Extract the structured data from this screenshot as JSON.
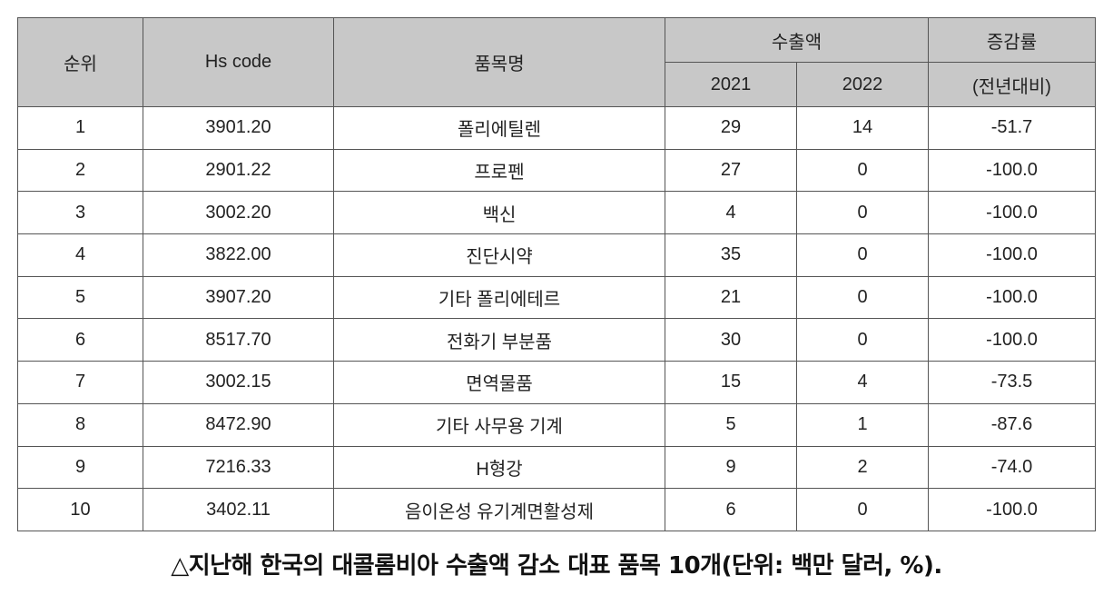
{
  "header": {
    "rank": "순위",
    "hs_code": "Hs code",
    "item_name": "품목명",
    "export_amount": "수출액",
    "year_2021": "2021",
    "year_2022": "2022",
    "change_rate_line1": "증감률",
    "change_rate_line2": "(전년대비)"
  },
  "rows": [
    {
      "rank": "1",
      "hs": "3901.20",
      "name": "폴리에틸렌",
      "v2021": "29",
      "v2022": "14",
      "change": "-51.7"
    },
    {
      "rank": "2",
      "hs": "2901.22",
      "name": "프로펜",
      "v2021": "27",
      "v2022": "0",
      "change": "-100.0"
    },
    {
      "rank": "3",
      "hs": "3002.20",
      "name": "백신",
      "v2021": "4",
      "v2022": "0",
      "change": "-100.0"
    },
    {
      "rank": "4",
      "hs": "3822.00",
      "name": "진단시약",
      "v2021": "35",
      "v2022": "0",
      "change": "-100.0"
    },
    {
      "rank": "5",
      "hs": "3907.20",
      "name": "기타 폴리에테르",
      "v2021": "21",
      "v2022": "0",
      "change": "-100.0"
    },
    {
      "rank": "6",
      "hs": "8517.70",
      "name": "전화기 부분품",
      "v2021": "30",
      "v2022": "0",
      "change": "-100.0"
    },
    {
      "rank": "7",
      "hs": "3002.15",
      "name": "면역물품",
      "v2021": "15",
      "v2022": "4",
      "change": "-73.5"
    },
    {
      "rank": "8",
      "hs": "8472.90",
      "name": "기타 사무용 기계",
      "v2021": "5",
      "v2022": "1",
      "change": "-87.6"
    },
    {
      "rank": "9",
      "hs": "7216.33",
      "name": "H형강",
      "v2021": "9",
      "v2022": "2",
      "change": "-74.0"
    },
    {
      "rank": "10",
      "hs": "3402.11",
      "name": "음이온성 유기계면활성제",
      "v2021": "6",
      "v2022": "0",
      "change": "-100.0"
    }
  ],
  "caption": "△지난해 한국의 대콜롬비아 수출액 감소 대표 품목 10개(단위: 백만 달러, %)."
}
